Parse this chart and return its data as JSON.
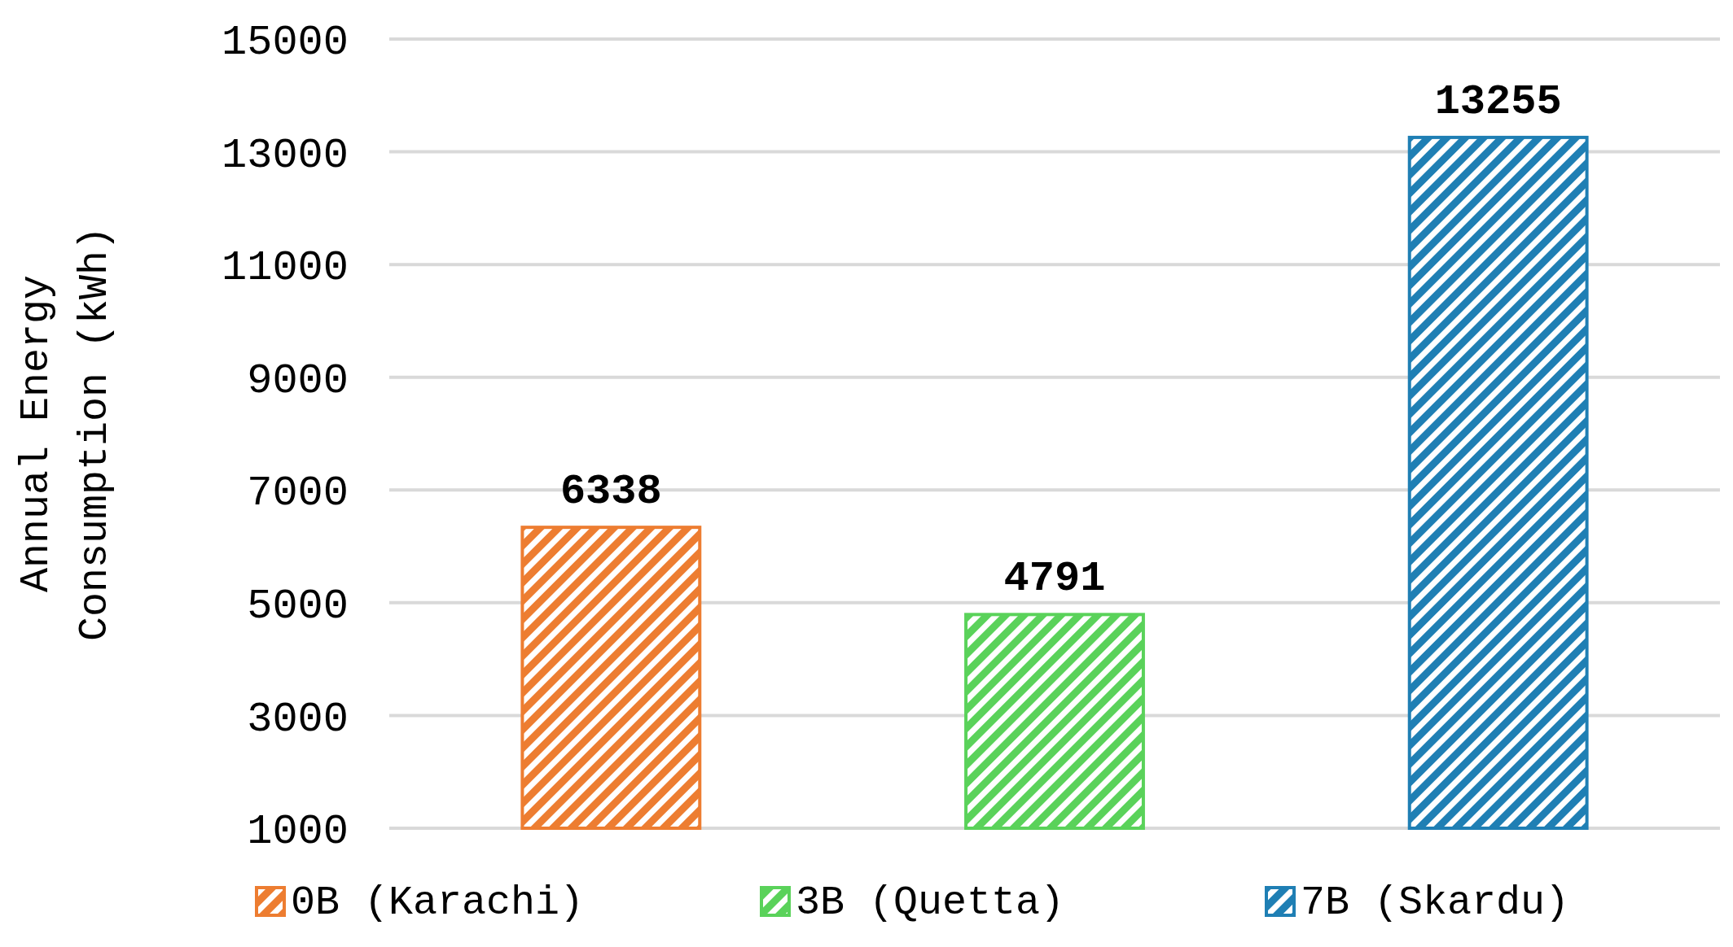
{
  "chart_data": {
    "type": "bar",
    "ylabel": "Annual Energy Consumption (kWh)",
    "categories": [
      null,
      null,
      null
    ],
    "series": [
      {
        "name": "0B (Karachi)",
        "color": "#ed7d31",
        "values": [
          6338,
          null,
          null
        ]
      },
      {
        "name": "3B (Quetta)",
        "color": "#5ad25a",
        "values": [
          null,
          4791,
          null
        ]
      },
      {
        "name": "7B (Skardu)",
        "color": "#1f7fb4",
        "values": [
          null,
          null,
          13255
        ]
      }
    ],
    "ylim": [
      1000,
      15000
    ],
    "yticks": [
      1000,
      3000,
      5000,
      7000,
      9000,
      11000,
      13000,
      15000
    ],
    "grid": "y",
    "legend": "bottom",
    "data_labels": true
  }
}
